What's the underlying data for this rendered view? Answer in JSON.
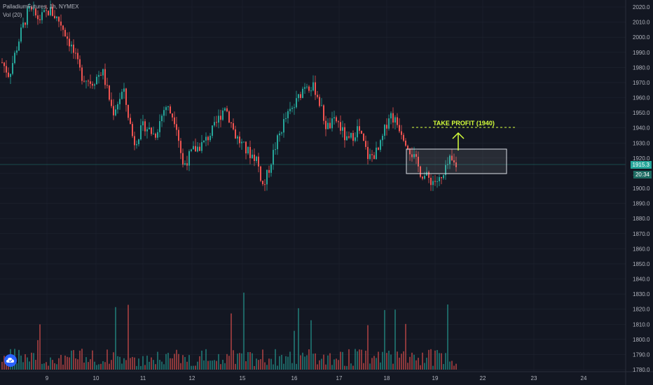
{
  "header": {
    "symbol_line": "PalladiumFutures, 1h, NYMEX",
    "volume_label": "Vol (20)"
  },
  "price_axis": {
    "ticks": [
      "2020.0",
      "2010.0",
      "2000.0",
      "1990.0",
      "1980.0",
      "1970.0",
      "1960.0",
      "1950.0",
      "1940.0",
      "1930.0",
      "1920.0",
      "1910.0",
      "1900.0",
      "1890.0",
      "1880.0",
      "1870.0",
      "1860.0",
      "1850.0",
      "1840.0",
      "1830.0",
      "1820.0",
      "1810.0",
      "1800.0",
      "1790.0",
      "1780.0"
    ],
    "last_price": "1915.3",
    "countdown": "20:34"
  },
  "time_axis": {
    "labels": [
      "9",
      "10",
      "11",
      "12",
      "15",
      "16",
      "17",
      "18",
      "19",
      "22",
      "23",
      "24"
    ]
  },
  "annotation": {
    "text": "TAKE PROFIT (1940)",
    "target_price": 1940,
    "box_low": 1906,
    "box_high": 1926
  },
  "colors": {
    "background": "#131722",
    "up": "#26a69a",
    "down": "#ef5350",
    "grid": "#1f2430",
    "annotation": "#d4ff3a"
  },
  "icons": {
    "logo": "tradingview-cloud-icon",
    "arrow": "arrow-up-icon"
  }
}
